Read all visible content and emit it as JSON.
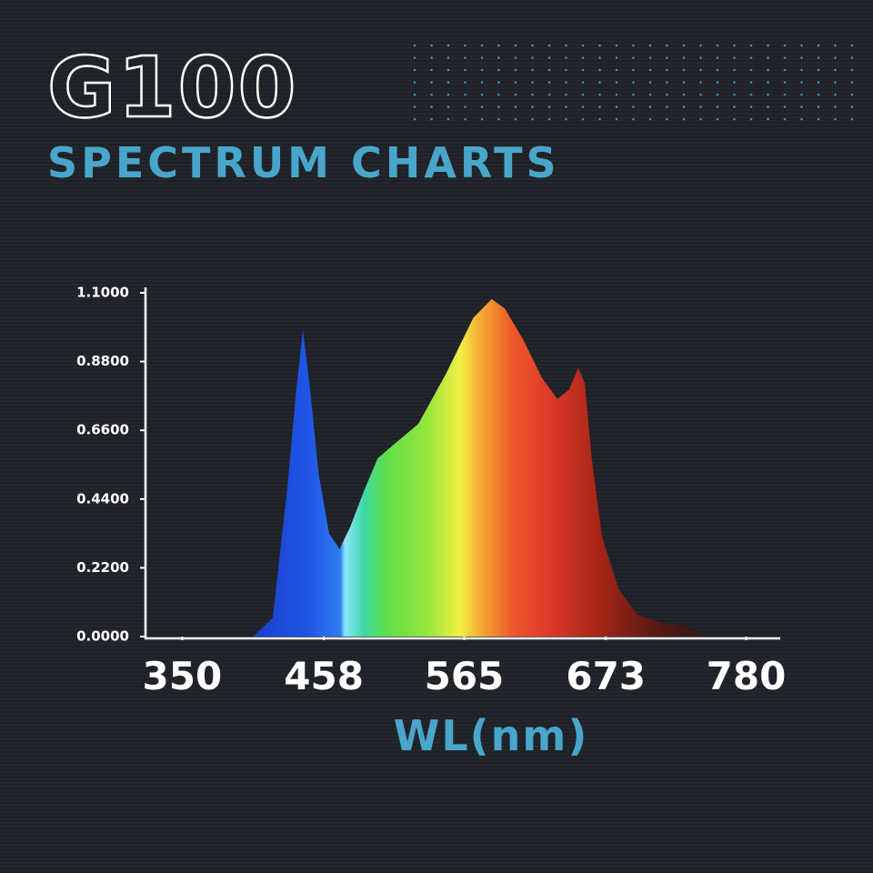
{
  "chart_data": {
    "type": "area",
    "title": "G100",
    "subtitle": "SPECTRUM CHARTS",
    "x_label": "WL(nm)",
    "x": [
      404,
      419,
      430,
      437,
      442,
      447,
      454,
      462,
      470,
      478,
      489,
      499,
      510,
      530,
      551,
      572,
      586,
      596,
      610,
      624,
      636,
      645,
      652,
      657,
      662,
      670,
      683,
      697,
      718,
      735,
      749
    ],
    "values": [
      0,
      0.06,
      0.47,
      0.79,
      0.98,
      0.81,
      0.52,
      0.33,
      0.28,
      0.35,
      0.47,
      0.57,
      0.61,
      0.68,
      0.84,
      1.02,
      1.08,
      1.05,
      0.95,
      0.83,
      0.76,
      0.79,
      0.86,
      0.81,
      0.58,
      0.32,
      0.15,
      0.07,
      0.04,
      0.035,
      0
    ],
    "xlim": [
      322,
      806
    ],
    "ylim": [
      0,
      1.1
    ],
    "xticks": [
      350,
      458,
      565,
      673,
      780
    ],
    "yticks": [
      {
        "value": 0,
        "label": "0.0000"
      },
      {
        "value": 0.22,
        "label": "0.2200"
      },
      {
        "value": 0.44,
        "label": "0.4400"
      },
      {
        "value": 0.66,
        "label": "0.6600"
      },
      {
        "value": 0.88,
        "label": "0.8800"
      },
      {
        "value": 1.1,
        "label": "1.1000"
      }
    ]
  }
}
